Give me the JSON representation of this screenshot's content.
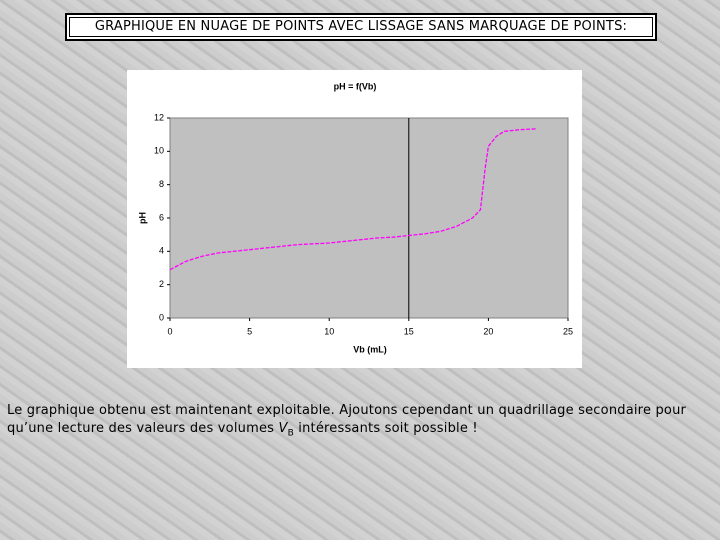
{
  "header": {
    "title": "GRAPHIQUE EN NUAGE DE POINTS AVEC LISSAGE SANS MARQUAGE DE POINTS:"
  },
  "caption": {
    "part1": "Le graphique obtenu est maintenant exploitable. Ajoutons cependant un quadrillage secondaire pour qu’une lecture des valeurs des volumes",
    "symbol": "V",
    "subscript": "B",
    "part2": "intéressants soit possible !"
  },
  "chart_data": {
    "type": "scatter-line",
    "title": "pH = f(Vb)",
    "x_label": "Vb (mL)",
    "y_label": "pH",
    "x": [
      0,
      1,
      2,
      3,
      4,
      5,
      6,
      7,
      8,
      9,
      10,
      11,
      12,
      13,
      14,
      15,
      16,
      17,
      18,
      19,
      19.5,
      19.8,
      20,
      20.5,
      21,
      22,
      23
    ],
    "series": [
      {
        "name": "pH",
        "color": "#ff00ff",
        "values": [
          2.9,
          3.4,
          3.7,
          3.9,
          4.0,
          4.1,
          4.2,
          4.3,
          4.4,
          4.45,
          4.5,
          4.6,
          4.7,
          4.8,
          4.85,
          4.95,
          5.05,
          5.2,
          5.5,
          6.0,
          6.5,
          9.0,
          10.3,
          10.9,
          11.2,
          11.3,
          11.35
        ]
      }
    ],
    "vline": 15,
    "xlim": [
      0,
      25
    ],
    "xticks": [
      0,
      5,
      10,
      15,
      20,
      25
    ],
    "ylim": [
      0,
      12
    ],
    "yticks": [
      0,
      2,
      4,
      6,
      8,
      10,
      12
    ]
  }
}
